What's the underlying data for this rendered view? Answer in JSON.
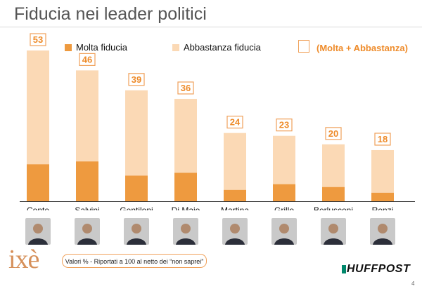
{
  "title": "Fiducia nei leader politici",
  "legend": {
    "molta": "Molta fiducia",
    "abbastanza": "Abbastanza fiducia",
    "totale": "(Molta + Abbastanza)"
  },
  "colors": {
    "molta": "#ee9a3f",
    "abbastanza": "#fbd9b5",
    "accent": "#ee8b2a",
    "axis": "#333333"
  },
  "chart_data": {
    "type": "bar",
    "stacked": true,
    "title": "Fiducia nei leader politici",
    "categories": [
      "Conte",
      "Salvini",
      "Gentiloni",
      "Di Maio",
      "Martina",
      "Grillo",
      "Berlusconi",
      "Renzi"
    ],
    "series": [
      {
        "name": "Molta fiducia",
        "values": [
          13,
          14,
          9,
          10,
          4,
          6,
          5,
          3
        ]
      },
      {
        "name": "Abbastanza fiducia",
        "values": [
          40,
          32,
          30,
          26,
          20,
          17,
          15,
          15
        ]
      }
    ],
    "totals_label": "(Molta + Abbastanza)",
    "totals": [
      53,
      46,
      39,
      36,
      24,
      23,
      20,
      18
    ],
    "ylim": [
      0,
      53
    ],
    "grid": false,
    "legend_position": "top"
  },
  "photos": [
    {
      "name": "conte-photo",
      "icon": "portrait-icon"
    },
    {
      "name": "salvini-photo",
      "icon": "portrait-icon"
    },
    {
      "name": "gentiloni-photo",
      "icon": "portrait-icon"
    },
    {
      "name": "di-maio-photo",
      "icon": "portrait-icon"
    },
    {
      "name": "martina-photo",
      "icon": "portrait-icon"
    },
    {
      "name": "grillo-photo",
      "icon": "portrait-icon"
    },
    {
      "name": "berlusconi-photo",
      "icon": "portrait-icon"
    },
    {
      "name": "renzi-photo",
      "icon": "portrait-icon"
    }
  ],
  "footer": {
    "logo": "ixè",
    "note": "Valori % - Riportati a 100 al netto dei “non saprei”",
    "brand": "HUFFPOST",
    "page": "4"
  }
}
